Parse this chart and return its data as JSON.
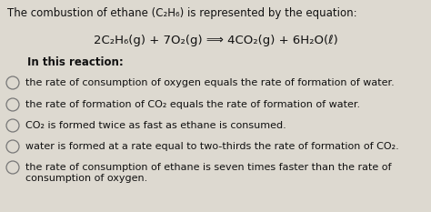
{
  "bg_color": "#ddd9d0",
  "title_text": "The combustion of ethane (C₂H₆) is represented by the equation:",
  "equation": "2C₂H₆(g) + 7O₂(g) ⟹ 4CO₂(g) + 6H₂O(ℓ)",
  "subtitle": "In this reaction:",
  "options": [
    "the rate of consumption of oxygen equals the rate of formation of water.",
    "the rate of formation of CO₂ equals the rate of formation of water.",
    "CO₂ is formed twice as fast as ethane is consumed.",
    "water is formed at a rate equal to two-thirds the rate of formation of CO₂.",
    "the rate of consumption of ethane is seven times faster than the rate of\nconsumption of oxygen."
  ],
  "text_color": "#111111",
  "circle_color": "#777777",
  "font_size_title": 8.5,
  "font_size_eq": 9.5,
  "font_size_subtitle": 8.5,
  "font_size_options": 8.0
}
